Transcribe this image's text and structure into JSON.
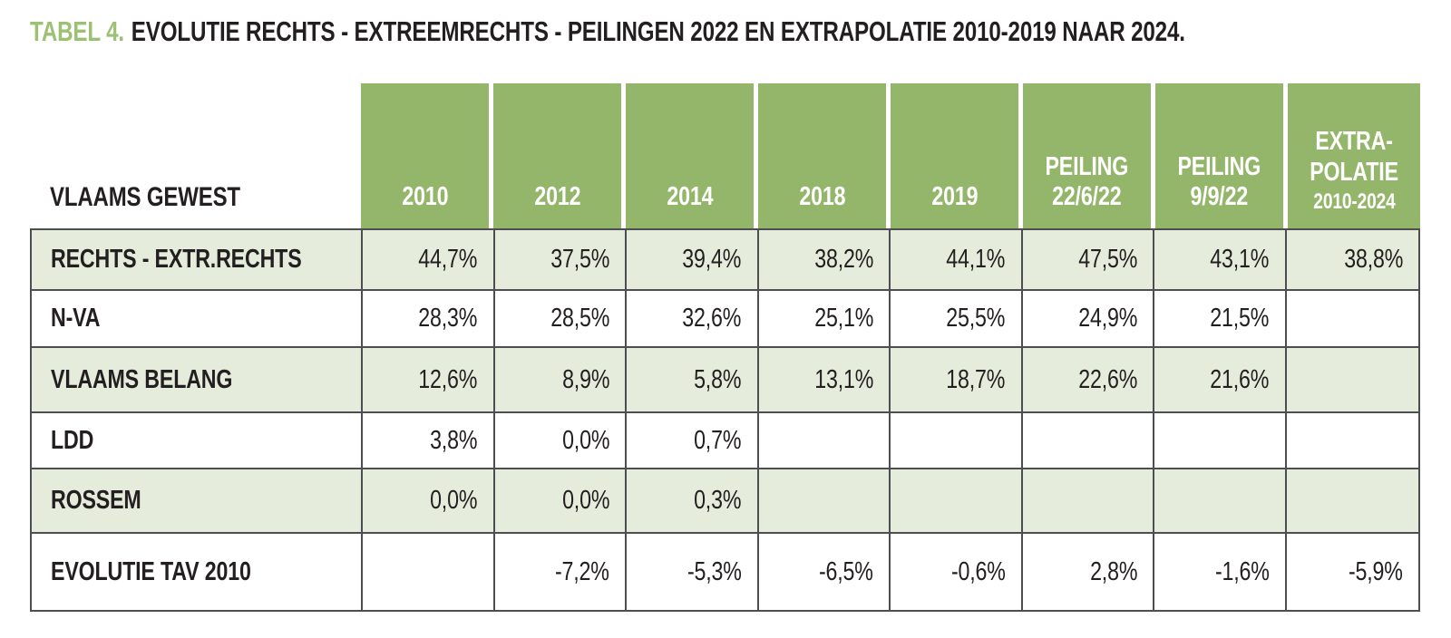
{
  "title": {
    "prefix": "TABEL 4.",
    "text": "EVOLUTIE RECHTS - EXTREEMRECHTS - PEILINGEN 2022 EN EXTRAPOLATIE 2010-2019 NAAR 2024."
  },
  "colors": {
    "header_green": "#94b66a",
    "row_shade_green": "#e6ecdb",
    "title_green": "#9cc172",
    "text_dark": "#231f20",
    "header_text": "#ffffff",
    "border": "#4d4e52"
  },
  "table": {
    "corner_label": "VLAAMS GEWEST",
    "columns": [
      {
        "label": "2010",
        "sublabel": ""
      },
      {
        "label": "2012",
        "sublabel": ""
      },
      {
        "label": "2014",
        "sublabel": ""
      },
      {
        "label": "2018",
        "sublabel": ""
      },
      {
        "label": "2019",
        "sublabel": ""
      },
      {
        "label": "PEILING\n22/6/22",
        "sublabel": ""
      },
      {
        "label": "PEILING\n9/9/22",
        "sublabel": ""
      },
      {
        "label": "EXTRA-\nPOLATIE",
        "sublabel": "2010-2024"
      }
    ],
    "rows": [
      {
        "label": "RECHTS - EXTR.RECHTS",
        "values": [
          "44,7%",
          "37,5%",
          "39,4%",
          "38,2%",
          "44,1%",
          "47,5%",
          "43,1%",
          "38,8%"
        ]
      },
      {
        "label": "N-VA",
        "values": [
          "28,3%",
          "28,5%",
          "32,6%",
          "25,1%",
          "25,5%",
          "24,9%",
          "21,5%",
          ""
        ]
      },
      {
        "label": "VLAAMS BELANG",
        "values": [
          "12,6%",
          "8,9%",
          "5,8%",
          "13,1%",
          "18,7%",
          "22,6%",
          "21,6%",
          ""
        ]
      },
      {
        "label": "LDD",
        "values": [
          "3,8%",
          "0,0%",
          "0,7%",
          "",
          "",
          "",
          "",
          ""
        ]
      },
      {
        "label": "ROSSEM",
        "values": [
          "0,0%",
          "0,0%",
          "0,3%",
          "",
          "",
          "",
          "",
          ""
        ]
      },
      {
        "label": "EVOLUTIE TAV 2010",
        "values": [
          "",
          "-7,2%",
          "-5,3%",
          "-6,5%",
          "-0,6%",
          "2,8%",
          "-1,6%",
          "-5,9%"
        ]
      }
    ]
  },
  "chart_data": {
    "type": "table",
    "title": "TABEL 4. EVOLUTIE RECHTS - EXTREEMRECHTS - PEILINGEN 2022 EN EXTRAPOLATIE 2010-2019 NAAR 2024.",
    "region": "VLAAMS GEWEST",
    "columns": [
      "2010",
      "2012",
      "2014",
      "2018",
      "2019",
      "PEILING 22/6/22",
      "PEILING 9/9/22",
      "EXTRAPOLATIE 2010-2024"
    ],
    "rows": [
      {
        "label": "RECHTS - EXTR.RECHTS",
        "values_pct": [
          44.7,
          37.5,
          39.4,
          38.2,
          44.1,
          47.5,
          43.1,
          38.8
        ]
      },
      {
        "label": "N-VA",
        "values_pct": [
          28.3,
          28.5,
          32.6,
          25.1,
          25.5,
          24.9,
          21.5,
          null
        ]
      },
      {
        "label": "VLAAMS BELANG",
        "values_pct": [
          12.6,
          8.9,
          5.8,
          13.1,
          18.7,
          22.6,
          21.6,
          null
        ]
      },
      {
        "label": "LDD",
        "values_pct": [
          3.8,
          0.0,
          0.7,
          null,
          null,
          null,
          null,
          null
        ]
      },
      {
        "label": "ROSSEM",
        "values_pct": [
          0.0,
          0.0,
          0.3,
          null,
          null,
          null,
          null,
          null
        ]
      },
      {
        "label": "EVOLUTIE TAV 2010",
        "values_pct": [
          null,
          -7.2,
          -5.3,
          -6.5,
          -0.6,
          2.8,
          -1.6,
          -5.9
        ]
      }
    ],
    "notes": "Values are percentages; decimal comma notation; blank cells contain no data."
  }
}
